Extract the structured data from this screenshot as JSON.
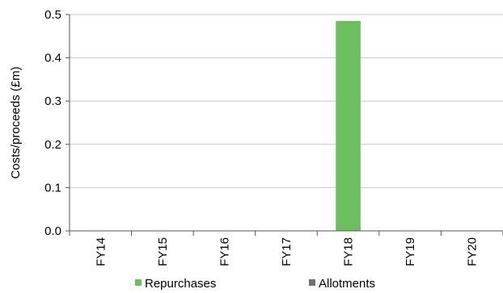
{
  "chart_data": {
    "type": "bar",
    "categories": [
      "FY14",
      "FY15",
      "FY16",
      "FY17",
      "FY18",
      "FY19",
      "FY20"
    ],
    "series": [
      {
        "name": "Repurchases",
        "values": [
          0,
          0,
          0,
          0,
          0.485,
          0,
          0
        ],
        "color": "#6cbf5f"
      },
      {
        "name": "Allotments",
        "values": [
          0,
          0,
          0,
          0,
          0,
          0,
          0
        ],
        "color": "#707070"
      }
    ],
    "ylabel": "Costs/proceeds (£m)",
    "xlabel": "",
    "ylim": [
      0,
      0.5
    ],
    "yticks": [
      "0.0",
      "0.1",
      "0.2",
      "0.3",
      "0.4",
      "0.5"
    ],
    "grid": true,
    "legend_position": "bottom"
  }
}
